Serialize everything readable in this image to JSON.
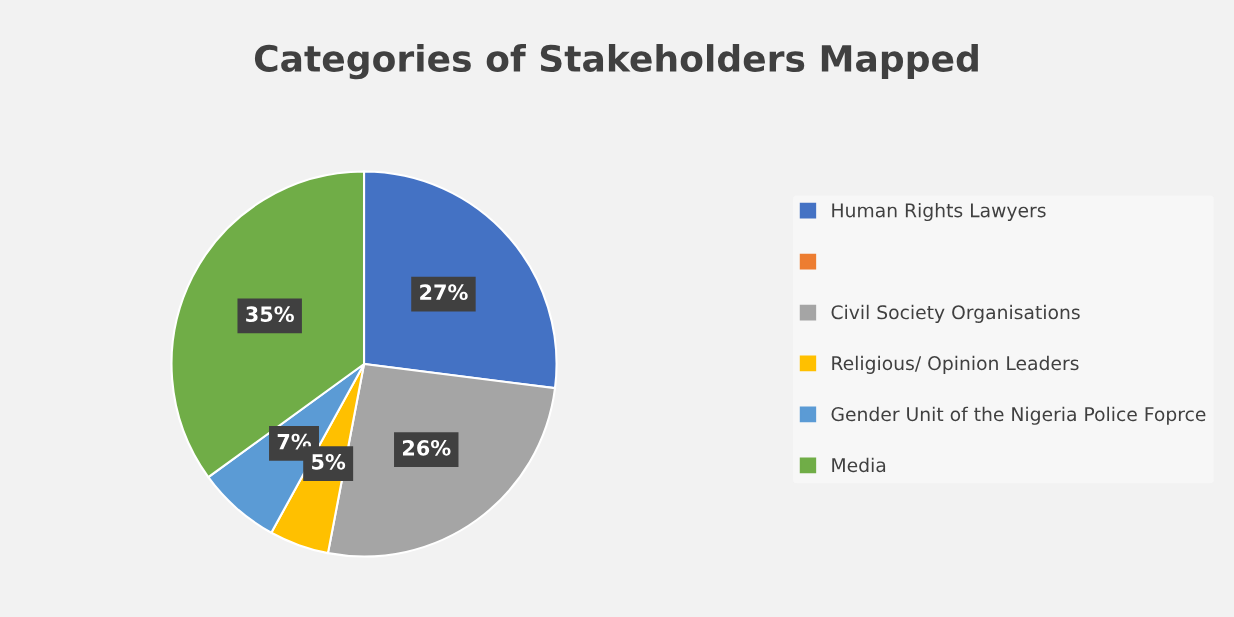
{
  "chart_data": {
    "type": "pie",
    "title": "Categories of Stakeholders Mapped",
    "categories": [
      "Human Rights Lawyers",
      null,
      "Civil Society Organisations",
      "Religious/ Opinion Leaders",
      "Gender Unit of the Nigeria Police Foprce",
      "Media"
    ],
    "values": [
      27,
      0,
      26,
      5,
      7,
      35
    ],
    "colors": [
      "#4472c4",
      "#ed7d31",
      "#a5a5a5",
      "#ffc000",
      "#5b9bd5",
      "#70ad47"
    ],
    "value_labels": [
      "27%",
      null,
      "26%",
      "5%",
      "7%",
      "35%"
    ],
    "legend": "right"
  }
}
